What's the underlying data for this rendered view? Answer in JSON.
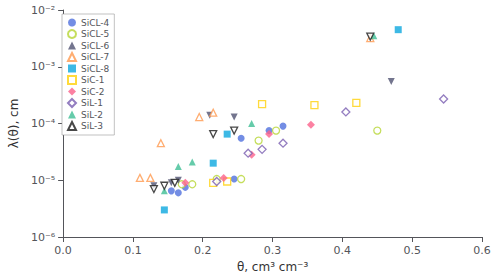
{
  "chart_data": {
    "type": "scatter",
    "xlabel": "θ, cm³ cm⁻³",
    "ylabel": "λ(θ), cm",
    "log": "y",
    "grid": false,
    "legend": "upper left",
    "xlim": [
      0.0,
      0.6
    ],
    "ylim": [
      1e-06,
      0.01
    ],
    "xticks": [
      {
        "value": 0,
        "label": "0.0"
      },
      0.1,
      0.2,
      0.3,
      0.4,
      0.5,
      0.6
    ],
    "yticks": [
      {
        "value": 1e-06,
        "label": "10⁻⁶"
      },
      {
        "value": 1e-05,
        "label": "10⁻⁵"
      },
      {
        "value": 0.0001,
        "label": "10⁻⁴"
      },
      {
        "value": 0.001,
        "label": "10⁻³"
      },
      {
        "value": 0.01,
        "label": "10⁻²"
      }
    ],
    "series": [
      {
        "name": "SiCL-4",
        "marker": "circle",
        "x": [
          0.155,
          0.165,
          0.175,
          0.245,
          0.255,
          0.295,
          0.315
        ],
        "values": [
          6.5e-06,
          6e-06,
          7.5e-06,
          1.05e-05,
          5.5e-05,
          7.5e-05,
          9e-05
        ]
      },
      {
        "name": "SiCL-5",
        "marker": "circle_open",
        "x": [
          0.17,
          0.185,
          0.22,
          0.255,
          0.28,
          0.305,
          0.45
        ],
        "values": [
          8.5e-06,
          8.5e-06,
          1.05e-05,
          1.05e-05,
          5e-05,
          7.5e-05,
          7.5e-05
        ]
      },
      {
        "name": "SiCL-6",
        "marker": "triangle_down",
        "x": [
          0.13,
          0.155,
          0.165,
          0.21,
          0.245,
          0.47
        ],
        "values": [
          8e-06,
          9e-06,
          1e-05,
          0.00014,
          0.00013,
          0.00055
        ]
      },
      {
        "name": "SiCL-7",
        "marker": "triangle_open",
        "x": [
          0.11,
          0.125,
          0.14,
          0.195,
          0.215,
          0.44
        ],
        "values": [
          1.1e-05,
          1.1e-05,
          4.5e-05,
          0.00013,
          0.000155,
          0.0032
        ]
      },
      {
        "name": "SiCL-8",
        "marker": "square",
        "x": [
          0.145,
          0.215,
          0.235,
          0.48
        ],
        "values": [
          3e-06,
          2e-05,
          6.5e-05,
          0.0045
        ]
      },
      {
        "name": "SiC-1",
        "marker": "square_open",
        "x": [
          0.215,
          0.235,
          0.285,
          0.36,
          0.42
        ],
        "values": [
          9e-06,
          9.5e-06,
          0.00022,
          0.00021,
          0.00023
        ]
      },
      {
        "name": "SiC-2",
        "marker": "diamond",
        "x": [
          0.175,
          0.23,
          0.27,
          0.295,
          0.355
        ],
        "values": [
          9e-06,
          1.1e-05,
          2.8e-05,
          6.5e-05,
          9.5e-05
        ]
      },
      {
        "name": "SiL-1",
        "marker": "diamond_open",
        "x": [
          0.22,
          0.265,
          0.285,
          0.315,
          0.405,
          0.545
        ],
        "values": [
          9.5e-06,
          3e-05,
          3.5e-05,
          4.5e-05,
          0.00016,
          0.00027
        ]
      },
      {
        "name": "SiL-2",
        "marker": "triangle",
        "x": [
          0.145,
          0.165,
          0.185,
          0.27,
          0.445
        ],
        "values": [
          6.5e-06,
          1.75e-05,
          2.1e-05,
          0.0001,
          0.0035
        ]
      },
      {
        "name": "SiL-3",
        "marker": "triangle_down_open",
        "x": [
          0.13,
          0.145,
          0.16,
          0.215,
          0.245,
          0.44
        ],
        "values": [
          7e-06,
          8e-06,
          9e-06,
          6.5e-05,
          7.5e-05,
          0.0034
        ]
      }
    ]
  }
}
